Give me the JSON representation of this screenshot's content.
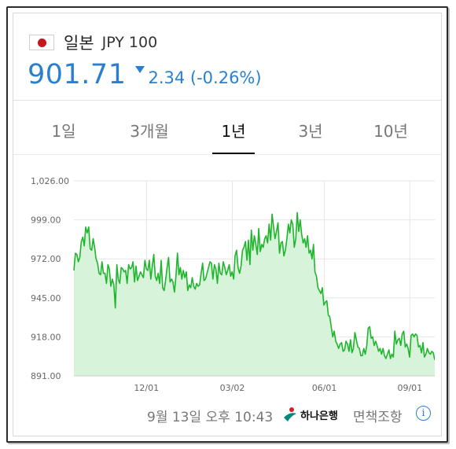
{
  "header": {
    "country": "일본",
    "currency_code": "JPY 100",
    "price": "901.71",
    "change": "2.34 (-0.26%)",
    "direction": "down",
    "accent_color": "#2a7fce",
    "flag_icon": "japan-flag-icon"
  },
  "tabs": [
    {
      "label": "1일",
      "active": false
    },
    {
      "label": "3개월",
      "active": false
    },
    {
      "label": "1년",
      "active": true
    },
    {
      "label": "3년",
      "active": false
    },
    {
      "label": "10년",
      "active": false
    }
  ],
  "footer": {
    "timestamp": "9월 13일 오후 10:43",
    "bank_name": "하나은행",
    "disclaimer": "면책조항",
    "info_icon": "info-icon"
  },
  "chart_data": {
    "type": "area",
    "color": "#1fb52c",
    "fill_color": "#d7f3da",
    "ylim": [
      891,
      1026
    ],
    "yticks": [
      "891.00",
      "918.00",
      "945.00",
      "972.00",
      "999.00",
      "1,026.00"
    ],
    "xtick_labels": [
      "12/01",
      "03/02",
      "06/01",
      "09/01"
    ],
    "xtick_positions": [
      0.201,
      0.439,
      0.694,
      0.931
    ],
    "grid": true,
    "values": [
      964,
      976,
      975,
      970,
      973,
      984,
      987,
      981,
      994,
      990,
      994,
      979,
      978,
      986,
      980,
      972,
      969,
      962,
      961,
      970,
      962,
      962,
      955,
      968,
      965,
      953,
      958,
      954,
      938,
      968,
      958,
      955,
      966,
      965,
      963,
      964,
      955,
      968,
      965,
      966,
      970,
      956,
      967,
      957,
      960,
      963,
      961,
      959,
      971,
      965,
      964,
      971,
      958,
      967,
      975,
      960,
      957,
      962,
      955,
      971,
      952,
      950,
      957,
      966,
      973,
      956,
      958,
      956,
      949,
      960,
      976,
      961,
      966,
      958,
      964,
      959,
      963,
      950,
      954,
      952,
      959,
      953,
      951,
      955,
      953,
      954,
      962,
      969,
      957,
      958,
      962,
      966,
      970,
      969,
      958,
      968,
      965,
      955,
      969,
      962,
      961,
      970,
      966,
      961,
      964,
      968,
      960,
      963,
      958,
      974,
      978,
      966,
      962,
      967,
      978,
      980,
      984,
      971,
      985,
      968,
      992,
      978,
      988,
      982,
      975,
      993,
      977,
      982,
      980,
      986,
      988,
      983,
      996,
      985,
      1003,
      994,
      986,
      991,
      997,
      976,
      983,
      984,
      974,
      978,
      986,
      996,
      990,
      999,
      996,
      980,
      986,
      1004,
      991,
      999,
      989,
      983,
      986,
      980,
      988,
      976,
      978,
      972,
      982,
      963,
      960,
      952,
      950,
      948,
      952,
      940,
      942,
      943,
      933,
      932,
      925,
      918,
      922,
      915,
      913,
      910,
      913,
      914,
      908,
      909,
      915,
      913,
      908,
      916,
      907,
      910,
      921,
      916,
      911,
      910,
      905,
      905,
      910,
      906,
      912,
      924,
      925,
      917,
      918,
      912,
      915,
      912,
      908,
      910,
      906,
      910,
      905,
      903,
      906,
      909,
      903,
      906,
      904,
      922,
      913,
      916,
      917,
      912,
      920,
      922,
      911,
      913,
      910,
      904,
      919,
      920,
      918,
      920,
      919,
      911,
      912,
      907,
      914,
      904,
      906,
      910,
      907,
      906,
      908,
      907,
      902
    ]
  }
}
